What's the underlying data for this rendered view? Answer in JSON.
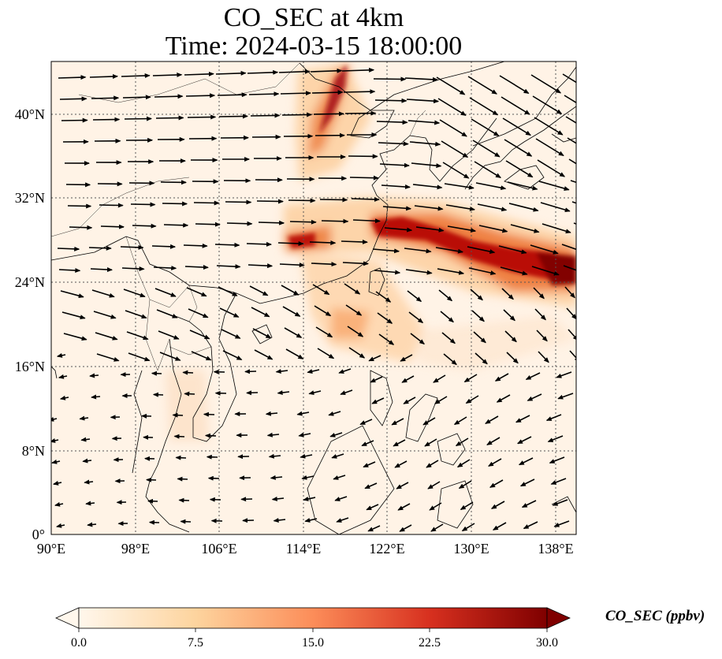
{
  "title": {
    "line1": "CO_SEC at 4km",
    "line2": "Time: 2024-03-15 18:00:00"
  },
  "map": {
    "lon_range": [
      90,
      140
    ],
    "lat_range": [
      0,
      45
    ],
    "lon_ticks": [
      "90°E",
      "98°E",
      "106°E",
      "114°E",
      "122°E",
      "130°E",
      "138°E"
    ],
    "lat_ticks": [
      "0°",
      "8°N",
      "16°N",
      "24°N",
      "32°N",
      "40°N"
    ],
    "gridlines": "dotted",
    "field": "CO_SEC",
    "vectors": "wind",
    "colors": {
      "background": "#fff5eb",
      "low": "#fee6ce",
      "mid": "#fdae6b",
      "high": "#d94801",
      "max": "#7f0000",
      "coast": "#000000"
    }
  },
  "colorbar": {
    "label": "CO_SEC (ppbv)",
    "min": 0.0,
    "max": 30.0,
    "ticks": [
      "0.0",
      "7.5",
      "15.0",
      "22.5",
      "30.0"
    ],
    "extend": "both",
    "colormap": "OrRd"
  }
}
